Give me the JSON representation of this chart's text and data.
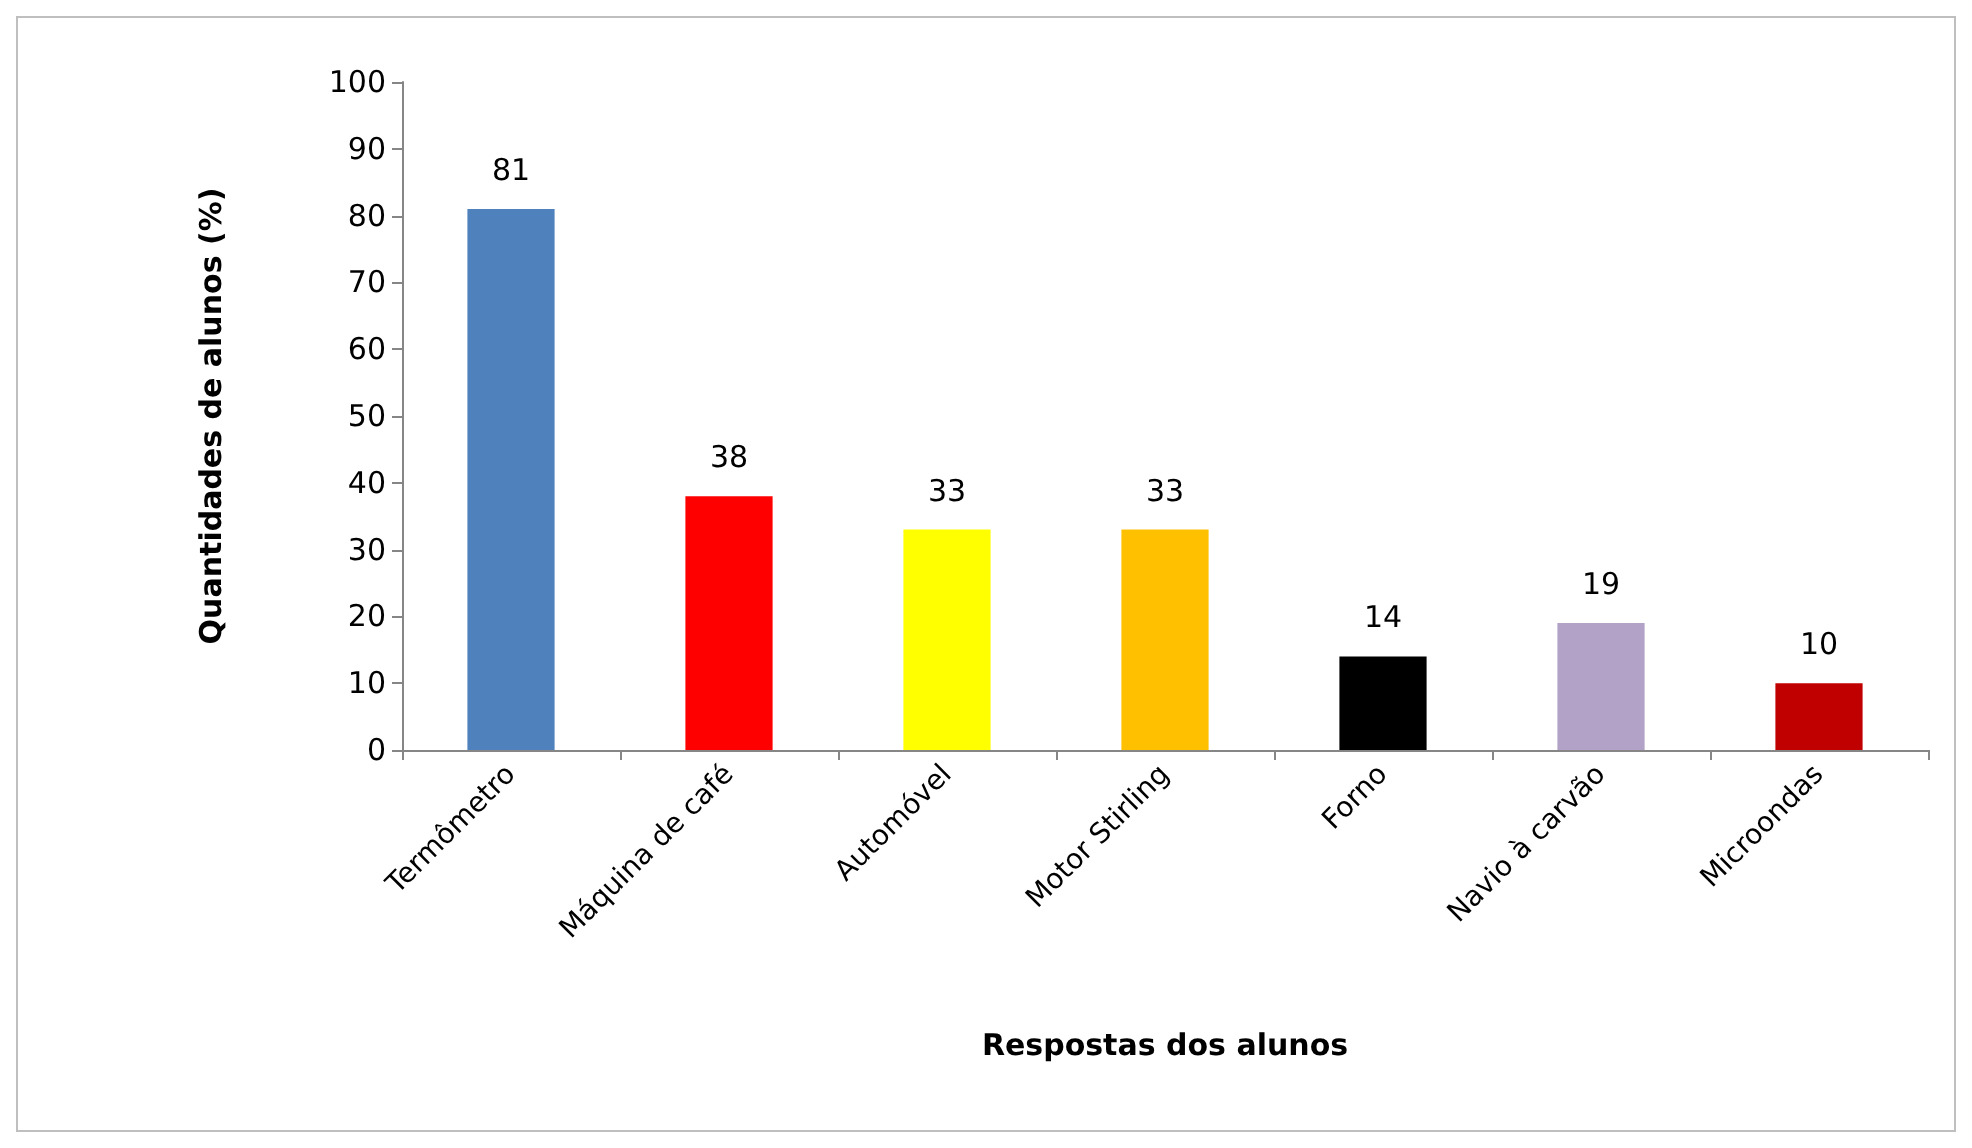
{
  "chart_data": {
    "type": "bar",
    "xlabel": "Respostas dos alunos",
    "ylabel": "Quantidades de alunos (%)",
    "categories": [
      "Termômetro",
      "Máquina de café",
      "Automóvel",
      "Motor Stirling",
      "Forno",
      "Navio à carvão",
      "Microondas"
    ],
    "values": [
      81,
      38,
      33,
      33,
      14,
      19,
      10
    ],
    "colors": [
      "#4f81bd",
      "#ff0000",
      "#ffff00",
      "#ffc000",
      "#000000",
      "#b3a2c7",
      "#c00000"
    ],
    "ylim": [
      0,
      100
    ],
    "yticks": [
      0,
      10,
      20,
      30,
      40,
      50,
      60,
      70,
      80,
      90,
      100
    ],
    "grid": false,
    "data_labels": true
  }
}
